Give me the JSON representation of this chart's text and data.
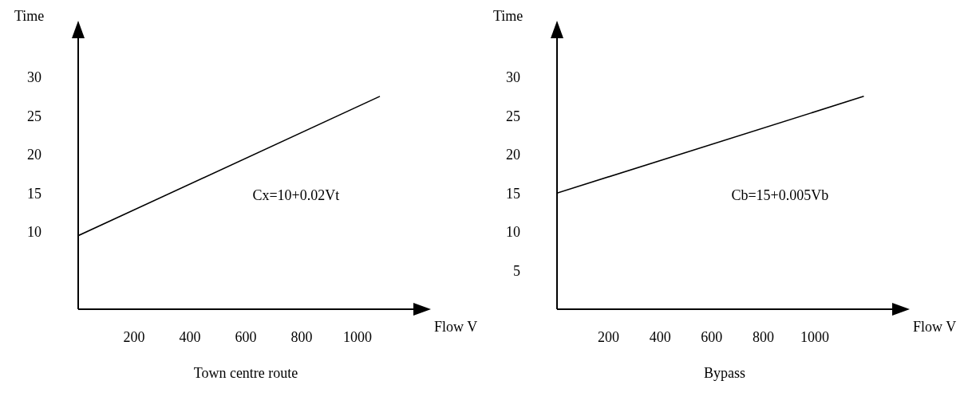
{
  "chart_data": [
    {
      "type": "line",
      "title": "Town centre route",
      "xlabel": "Flow V",
      "ylabel": "Time",
      "xlim": [
        0,
        1200
      ],
      "xticks": [
        200,
        400,
        600,
        800,
        1000
      ],
      "ylim": [
        0,
        35
      ],
      "yticks": [
        10,
        15,
        20,
        25,
        30
      ],
      "annotations": [
        "Cx=10+0.02Vt"
      ],
      "series": [
        {
          "color": "#000000",
          "x": [
            0,
            1080
          ],
          "values": [
            9.5,
            27.5
          ]
        }
      ]
    },
    {
      "type": "line",
      "title": "Bypass",
      "xlabel": "Flow V",
      "ylabel": "Time",
      "xlim": [
        0,
        1300
      ],
      "xticks": [
        200,
        400,
        600,
        800,
        1000
      ],
      "ylim": [
        0,
        35
      ],
      "yticks": [
        5,
        10,
        15,
        20,
        25,
        30
      ],
      "annotations": [
        "Cb=15+0.005Vb"
      ],
      "series": [
        {
          "color": "#000000",
          "x": [
            0,
            1190
          ],
          "values": [
            15,
            27.5
          ]
        }
      ]
    }
  ]
}
